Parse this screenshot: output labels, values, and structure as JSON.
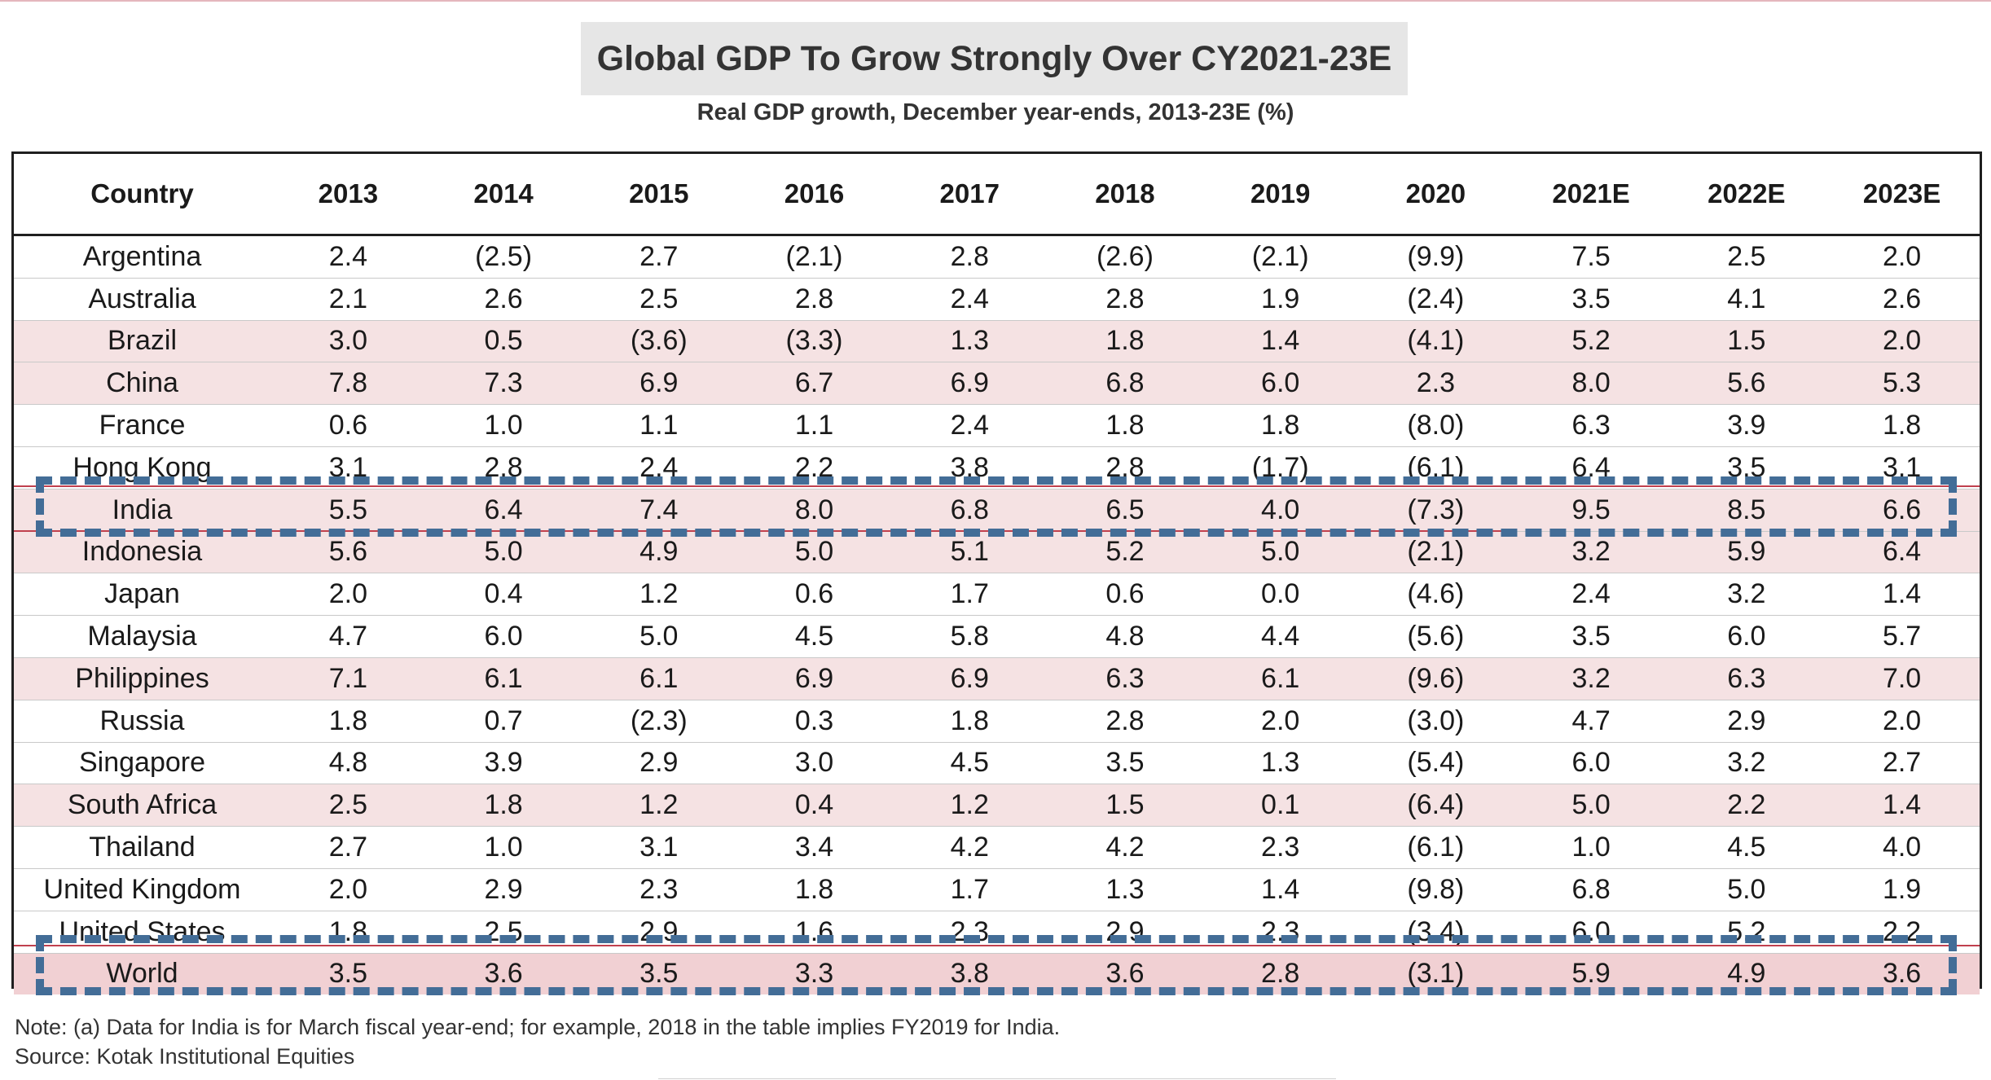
{
  "header": {
    "title": "Global GDP To Grow Strongly Over CY2021-23E",
    "subtitle": "Real GDP growth, December year-ends, 2013-23E (%)"
  },
  "chart_data": {
    "type": "table",
    "columns": [
      "Country",
      "2013",
      "2014",
      "2015",
      "2016",
      "2017",
      "2018",
      "2019",
      "2020",
      "2021E",
      "2022E",
      "2023E"
    ],
    "rows": [
      {
        "country": "Argentina",
        "values": [
          "2.4",
          "(2.5)",
          "2.7",
          "(2.1)",
          "2.8",
          "(2.6)",
          "(2.1)",
          "(9.9)",
          "7.5",
          "2.5",
          "2.0"
        ],
        "highlight": false
      },
      {
        "country": "Australia",
        "values": [
          "2.1",
          "2.6",
          "2.5",
          "2.8",
          "2.4",
          "2.8",
          "1.9",
          "(2.4)",
          "3.5",
          "4.1",
          "2.6"
        ],
        "highlight": false
      },
      {
        "country": "Brazil",
        "values": [
          "3.0",
          "0.5",
          "(3.6)",
          "(3.3)",
          "1.3",
          "1.8",
          "1.4",
          "(4.1)",
          "5.2",
          "1.5",
          "2.0"
        ],
        "highlight": true
      },
      {
        "country": "China",
        "values": [
          "7.8",
          "7.3",
          "6.9",
          "6.7",
          "6.9",
          "6.8",
          "6.0",
          "2.3",
          "8.0",
          "5.6",
          "5.3"
        ],
        "highlight": true
      },
      {
        "country": "France",
        "values": [
          "0.6",
          "1.0",
          "1.1",
          "1.1",
          "2.4",
          "1.8",
          "1.8",
          "(8.0)",
          "6.3",
          "3.9",
          "1.8"
        ],
        "highlight": false
      },
      {
        "country": "Hong Kong",
        "values": [
          "3.1",
          "2.8",
          "2.4",
          "2.2",
          "3.8",
          "2.8",
          "(1.7)",
          "(6.1)",
          "6.4",
          "3.5",
          "3.1"
        ],
        "highlight": false
      },
      {
        "country": "India",
        "values": [
          "5.5",
          "6.4",
          "7.4",
          "8.0",
          "6.8",
          "6.5",
          "4.0",
          "(7.3)",
          "9.5",
          "8.5",
          "6.6"
        ],
        "highlight": true
      },
      {
        "country": "Indonesia",
        "values": [
          "5.6",
          "5.0",
          "4.9",
          "5.0",
          "5.1",
          "5.2",
          "5.0",
          "(2.1)",
          "3.2",
          "5.9",
          "6.4"
        ],
        "highlight": true
      },
      {
        "country": "Japan",
        "values": [
          "2.0",
          "0.4",
          "1.2",
          "0.6",
          "1.7",
          "0.6",
          "0.0",
          "(4.6)",
          "2.4",
          "3.2",
          "1.4"
        ],
        "highlight": false
      },
      {
        "country": "Malaysia",
        "values": [
          "4.7",
          "6.0",
          "5.0",
          "4.5",
          "5.8",
          "4.8",
          "4.4",
          "(5.6)",
          "3.5",
          "6.0",
          "5.7"
        ],
        "highlight": false
      },
      {
        "country": "Philippines",
        "values": [
          "7.1",
          "6.1",
          "6.1",
          "6.9",
          "6.9",
          "6.3",
          "6.1",
          "(9.6)",
          "3.2",
          "6.3",
          "7.0"
        ],
        "highlight": true
      },
      {
        "country": "Russia",
        "values": [
          "1.8",
          "0.7",
          "(2.3)",
          "0.3",
          "1.8",
          "2.8",
          "2.0",
          "(3.0)",
          "4.7",
          "2.9",
          "2.0"
        ],
        "highlight": false
      },
      {
        "country": "Singapore",
        "values": [
          "4.8",
          "3.9",
          "2.9",
          "3.0",
          "4.5",
          "3.5",
          "1.3",
          "(5.4)",
          "6.0",
          "3.2",
          "2.7"
        ],
        "highlight": false
      },
      {
        "country": "South Africa",
        "values": [
          "2.5",
          "1.8",
          "1.2",
          "0.4",
          "1.2",
          "1.5",
          "0.1",
          "(6.4)",
          "5.0",
          "2.2",
          "1.4"
        ],
        "highlight": true
      },
      {
        "country": "Thailand",
        "values": [
          "2.7",
          "1.0",
          "3.1",
          "3.4",
          "4.2",
          "4.2",
          "2.3",
          "(6.1)",
          "1.0",
          "4.5",
          "4.0"
        ],
        "highlight": false
      },
      {
        "country": "United Kingdom",
        "values": [
          "2.0",
          "2.9",
          "2.3",
          "1.8",
          "1.7",
          "1.3",
          "1.4",
          "(9.8)",
          "6.8",
          "5.0",
          "1.9"
        ],
        "highlight": false
      },
      {
        "country": "United States",
        "values": [
          "1.8",
          "2.5",
          "2.9",
          "1.6",
          "2.3",
          "2.9",
          "2.3",
          "(3.4)",
          "6.0",
          "5.2",
          "2.2"
        ],
        "highlight": false
      },
      {
        "country": "World",
        "values": [
          "3.5",
          "3.6",
          "3.5",
          "3.3",
          "3.8",
          "3.6",
          "2.8",
          "(3.1)",
          "5.9",
          "4.9",
          "3.6"
        ],
        "highlight": true
      }
    ],
    "emphasized_rows": [
      "India",
      "World"
    ],
    "colors": {
      "highlight_row": "#f5e2e3",
      "world_row": "#f1d0d3",
      "dash_box": "#436d97",
      "accent_line": "#c0404e"
    }
  },
  "footer": {
    "note": "Note: (a) Data for India is for March fiscal year-end; for example, 2018 in the table implies FY2019 for India.",
    "source": "Source: Kotak Institutional Equities"
  }
}
